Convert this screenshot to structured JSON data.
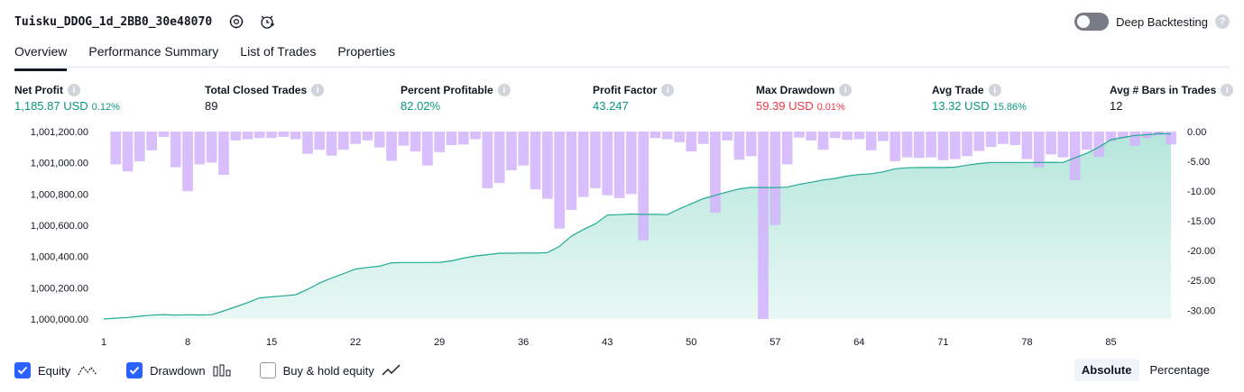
{
  "header": {
    "title": "Tuisku_DDOG_1d_2BB0_30e48070",
    "deep_backtesting_label": "Deep Backtesting",
    "help_glyph": "?"
  },
  "tabs": [
    {
      "label": "Overview"
    },
    {
      "label": "Performance Summary"
    },
    {
      "label": "List of Trades"
    },
    {
      "label": "Properties"
    }
  ],
  "stats": {
    "net_profit": {
      "label": "Net Profit",
      "value": "1,185.87 USD",
      "pct": "0.12%"
    },
    "total_closed_trades": {
      "label": "Total Closed Trades",
      "value": "89"
    },
    "percent_profitable": {
      "label": "Percent Profitable",
      "value": "82.02%"
    },
    "profit_factor": {
      "label": "Profit Factor",
      "value": "43.247"
    },
    "max_drawdown": {
      "label": "Max Drawdown",
      "value": "59.39 USD",
      "pct": "0.01%"
    },
    "avg_trade": {
      "label": "Avg Trade",
      "value": "13.32 USD",
      "pct": "15.86%"
    },
    "avg_bars": {
      "label": "Avg # Bars in Trades",
      "value": "12"
    }
  },
  "info_glyph": "i",
  "legend": {
    "equity": "Equity",
    "drawdown": "Drawdown",
    "buy_hold": "Buy & hold equity",
    "absolute": "Absolute",
    "percentage": "Percentage"
  },
  "colors": {
    "equity_line": "#22ab94",
    "equity_fill": "#a8e2d5",
    "drawdown_bar": "#d1b3fb",
    "drawdown_overlap": "#b9b5ef",
    "accent": "#2962ff"
  },
  "chart_data": {
    "type": "area",
    "x_ticks": [
      "1",
      "8",
      "15",
      "22",
      "29",
      "36",
      "43",
      "50",
      "57",
      "64",
      "71",
      "78",
      "85"
    ],
    "y_left_ticks": [
      "1,000,000.00",
      "1,000,200.00",
      "1,000,400.00",
      "1,000,600.00",
      "1,000,800.00",
      "1,001,000.00",
      "1,001,200.00"
    ],
    "y_right_ticks": [
      "0.00",
      "-5.00",
      "-10.00",
      "-15.00",
      "-20.00",
      "-25.00",
      "-30.00"
    ],
    "y_left_range": [
      1000000,
      1001200
    ],
    "y_right_range": [
      0,
      -31.5
    ],
    "x_range": [
      1,
      90
    ],
    "series": [
      {
        "name": "Equity",
        "x": [
          1,
          2,
          3,
          4,
          5,
          6,
          7,
          8,
          9,
          10,
          11,
          12,
          13,
          14,
          15,
          16,
          17,
          18,
          19,
          20,
          21,
          22,
          23,
          24,
          25,
          26,
          27,
          28,
          29,
          30,
          31,
          32,
          33,
          34,
          35,
          36,
          37,
          38,
          39,
          40,
          41,
          42,
          43,
          44,
          45,
          46,
          47,
          48,
          49,
          50,
          51,
          52,
          53,
          54,
          55,
          56,
          57,
          58,
          59,
          60,
          61,
          62,
          63,
          64,
          65,
          66,
          67,
          68,
          69,
          70,
          71,
          72,
          73,
          74,
          75,
          76,
          77,
          78,
          79,
          80,
          81,
          82,
          83,
          84,
          85,
          86,
          87,
          88,
          89,
          90
        ],
        "values": [
          1000000,
          1000005,
          1000010,
          1000018,
          1000025,
          1000028,
          1000025,
          1000027,
          1000026,
          1000027,
          1000052,
          1000078,
          1000105,
          1000135,
          1000142,
          1000148,
          1000155,
          1000190,
          1000230,
          1000262,
          1000290,
          1000320,
          1000330,
          1000338,
          1000360,
          1000362,
          1000362,
          1000362,
          1000363,
          1000372,
          1000390,
          1000403,
          1000412,
          1000421,
          1000421,
          1000423,
          1000422,
          1000425,
          1000465,
          1000530,
          1000573,
          1000610,
          1000665,
          1000668,
          1000672,
          1000670,
          1000670,
          1000668,
          1000705,
          1000738,
          1000770,
          1000792,
          1000813,
          1000833,
          1000843,
          1000842,
          1000842,
          1000844,
          1000862,
          1000875,
          1000890,
          1000900,
          1000915,
          1000925,
          1000930,
          1000942,
          1000962,
          1000968,
          1000970,
          1000970,
          1000970,
          1000972,
          1000985,
          1000995,
          1001002,
          1001002,
          1001002,
          1001002,
          1001002,
          1001003,
          1001002,
          1001032,
          1001062,
          1001100,
          1001148,
          1001162,
          1001175,
          1001180,
          1001188,
          1001185
        ]
      },
      {
        "name": "Drawdown",
        "x": [
          1,
          2,
          3,
          4,
          5,
          6,
          7,
          8,
          9,
          10,
          11,
          12,
          13,
          14,
          15,
          16,
          17,
          18,
          19,
          20,
          21,
          22,
          23,
          24,
          25,
          26,
          27,
          28,
          29,
          30,
          31,
          32,
          33,
          34,
          35,
          36,
          37,
          38,
          39,
          40,
          41,
          42,
          43,
          44,
          45,
          46,
          47,
          48,
          49,
          50,
          51,
          52,
          53,
          54,
          55,
          56,
          57,
          58,
          59,
          60,
          61,
          62,
          63,
          64,
          65,
          66,
          67,
          68,
          69,
          70,
          71,
          72,
          73,
          74,
          75,
          76,
          77,
          78,
          79,
          80,
          81,
          82,
          83,
          84,
          85,
          86,
          87,
          88,
          89,
          90
        ],
        "values": [
          0,
          -5.0,
          -6.2,
          -4.5,
          -2.6,
          -0.3,
          -5.5,
          -9.6,
          -5.0,
          -4.7,
          -6.8,
          -0.9,
          -0.7,
          -0.5,
          -0.5,
          -0.3,
          -0.7,
          -3.2,
          -2.5,
          -3.5,
          -2.5,
          -1.5,
          -0.9,
          -2.1,
          -4.4,
          -1.8,
          -2.8,
          -5.2,
          -2.9,
          -1.7,
          -1.6,
          -0.7,
          -9.1,
          -8.2,
          -6.0,
          -5.2,
          -9.3,
          -10.9,
          -16.0,
          -12.8,
          -10.6,
          -9.1,
          -10.3,
          -10.8,
          -10.1,
          -18.0,
          -0.5,
          -0.7,
          -1.2,
          -2.8,
          -1.5,
          -13.3,
          -0.9,
          -4.2,
          -3.6,
          -31.5,
          -15.4,
          -5.0,
          -0.4,
          -0.9,
          -2.5,
          -0.5,
          -0.8,
          -0.7,
          -2.6,
          -1.0,
          -4.5,
          -3.8,
          -3.9,
          -3.8,
          -4.3,
          -4.1,
          -3.6,
          -2.7,
          -2.0,
          -1.5,
          -1.7,
          -4.1,
          -5.5,
          -3.3,
          -3.8,
          -7.7,
          -2.5,
          -3.7,
          -1.0,
          -0.5,
          -1.8,
          -0.5,
          -0.1,
          -1.6
        ]
      }
    ]
  }
}
